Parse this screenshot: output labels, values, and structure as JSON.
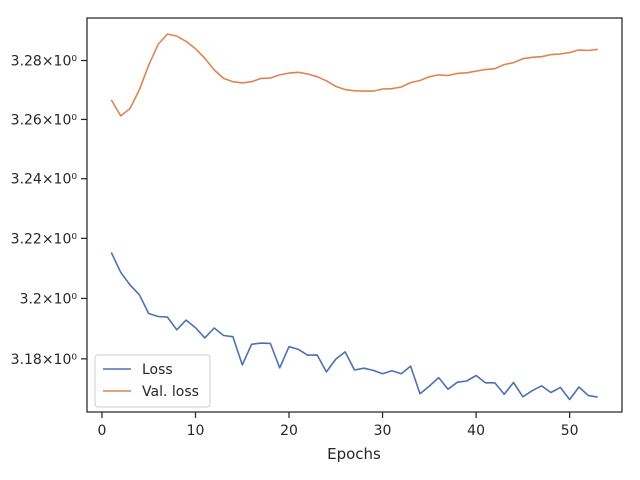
{
  "chart_data": {
    "type": "line",
    "title": "",
    "xlabel": "Epochs",
    "ylabel": "",
    "yscale": "log",
    "xlim": [
      -1.6,
      55.6
    ],
    "ylim": [
      3.1625,
      3.2945
    ],
    "xticks": [
      0,
      10,
      20,
      30,
      40,
      50
    ],
    "yticks": [
      {
        "value": 3.18,
        "label": "3.18×10⁰"
      },
      {
        "value": 3.2,
        "label": "3.2×10⁰"
      },
      {
        "value": 3.22,
        "label": "3.22×10⁰"
      },
      {
        "value": 3.24,
        "label": "3.24×10⁰"
      },
      {
        "value": 3.26,
        "label": "3.26×10⁰"
      },
      {
        "value": 3.28,
        "label": "3.28×10⁰"
      }
    ],
    "grid": false,
    "legend_position": "lower-left",
    "x": [
      1,
      2,
      3,
      4,
      5,
      6,
      7,
      8,
      9,
      10,
      11,
      12,
      13,
      14,
      15,
      16,
      17,
      18,
      19,
      20,
      21,
      22,
      23,
      24,
      25,
      26,
      27,
      28,
      29,
      30,
      31,
      32,
      33,
      34,
      35,
      36,
      37,
      38,
      39,
      40,
      41,
      42,
      43,
      44,
      45,
      46,
      47,
      48,
      49,
      50,
      51,
      52,
      53
    ],
    "series": [
      {
        "name": "Loss",
        "color": "#4c72b0",
        "values": [
          3.2153,
          3.2087,
          3.2045,
          3.2012,
          3.195,
          3.194,
          3.1938,
          3.1896,
          3.1928,
          3.1903,
          3.1869,
          3.1902,
          3.1877,
          3.1873,
          3.178,
          3.1848,
          3.1852,
          3.1851,
          3.177,
          3.184,
          3.1831,
          3.1812,
          3.1813,
          3.1757,
          3.1799,
          3.1823,
          3.1763,
          3.1769,
          3.1762,
          3.1751,
          3.1761,
          3.1751,
          3.1776,
          3.1685,
          3.171,
          3.1738,
          3.17,
          3.1723,
          3.1727,
          3.1745,
          3.1721,
          3.1721,
          3.1683,
          3.1722,
          3.1675,
          3.1695,
          3.1711,
          3.1689,
          3.1706,
          3.1666,
          3.1707,
          3.1679,
          3.1674
        ]
      },
      {
        "name": "Val. loss",
        "color": "#dd8452",
        "values": [
          3.2666,
          3.2612,
          3.2637,
          3.2701,
          3.2784,
          3.2855,
          3.289,
          3.2883,
          3.2865,
          3.284,
          3.2808,
          3.2768,
          3.2739,
          3.2728,
          3.2724,
          3.2728,
          3.2739,
          3.274,
          3.2751,
          3.2757,
          3.276,
          3.2754,
          3.2745,
          3.2731,
          3.2712,
          3.2701,
          3.2697,
          3.2696,
          3.2696,
          3.2703,
          3.2704,
          3.271,
          3.2725,
          3.2732,
          3.2745,
          3.2751,
          3.2749,
          3.2756,
          3.2758,
          3.2764,
          3.2769,
          3.2772,
          3.2786,
          3.2793,
          3.2806,
          3.2811,
          3.2813,
          3.282,
          3.2822,
          3.2827,
          3.2836,
          3.2834,
          3.2838
        ]
      }
    ]
  }
}
